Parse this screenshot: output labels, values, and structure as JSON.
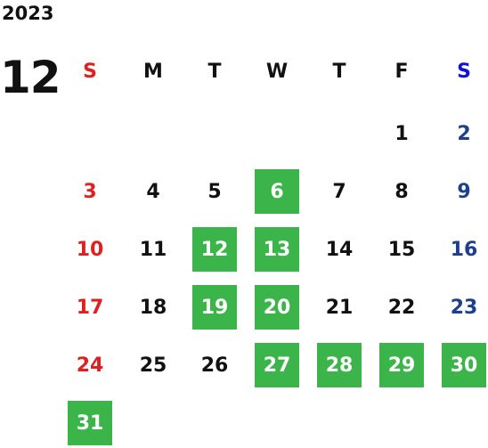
{
  "calendar": {
    "year": "2023",
    "month": "12",
    "weekdays": [
      "S",
      "M",
      "T",
      "W",
      "T",
      "F",
      "S"
    ],
    "weeks": [
      [
        null,
        null,
        null,
        null,
        null,
        {
          "day": 1,
          "highlight": false
        },
        {
          "day": 2,
          "highlight": false
        }
      ],
      [
        {
          "day": 3,
          "highlight": false
        },
        {
          "day": 4,
          "highlight": false
        },
        {
          "day": 5,
          "highlight": false
        },
        {
          "day": 6,
          "highlight": true
        },
        {
          "day": 7,
          "highlight": false
        },
        {
          "day": 8,
          "highlight": false
        },
        {
          "day": 9,
          "highlight": false
        }
      ],
      [
        {
          "day": 10,
          "highlight": false
        },
        {
          "day": 11,
          "highlight": false
        },
        {
          "day": 12,
          "highlight": true
        },
        {
          "day": 13,
          "highlight": true
        },
        {
          "day": 14,
          "highlight": false
        },
        {
          "day": 15,
          "highlight": false
        },
        {
          "day": 16,
          "highlight": false
        }
      ],
      [
        {
          "day": 17,
          "highlight": false
        },
        {
          "day": 18,
          "highlight": false
        },
        {
          "day": 19,
          "highlight": true
        },
        {
          "day": 20,
          "highlight": true
        },
        {
          "day": 21,
          "highlight": false
        },
        {
          "day": 22,
          "highlight": false
        },
        {
          "day": 23,
          "highlight": false
        }
      ],
      [
        {
          "day": 24,
          "highlight": false
        },
        {
          "day": 25,
          "highlight": false
        },
        {
          "day": 26,
          "highlight": false
        },
        {
          "day": 27,
          "highlight": true
        },
        {
          "day": 28,
          "highlight": true
        },
        {
          "day": 29,
          "highlight": true
        },
        {
          "day": 30,
          "highlight": true
        }
      ],
      [
        {
          "day": 31,
          "highlight": true
        },
        null,
        null,
        null,
        null,
        null,
        null
      ]
    ]
  }
}
